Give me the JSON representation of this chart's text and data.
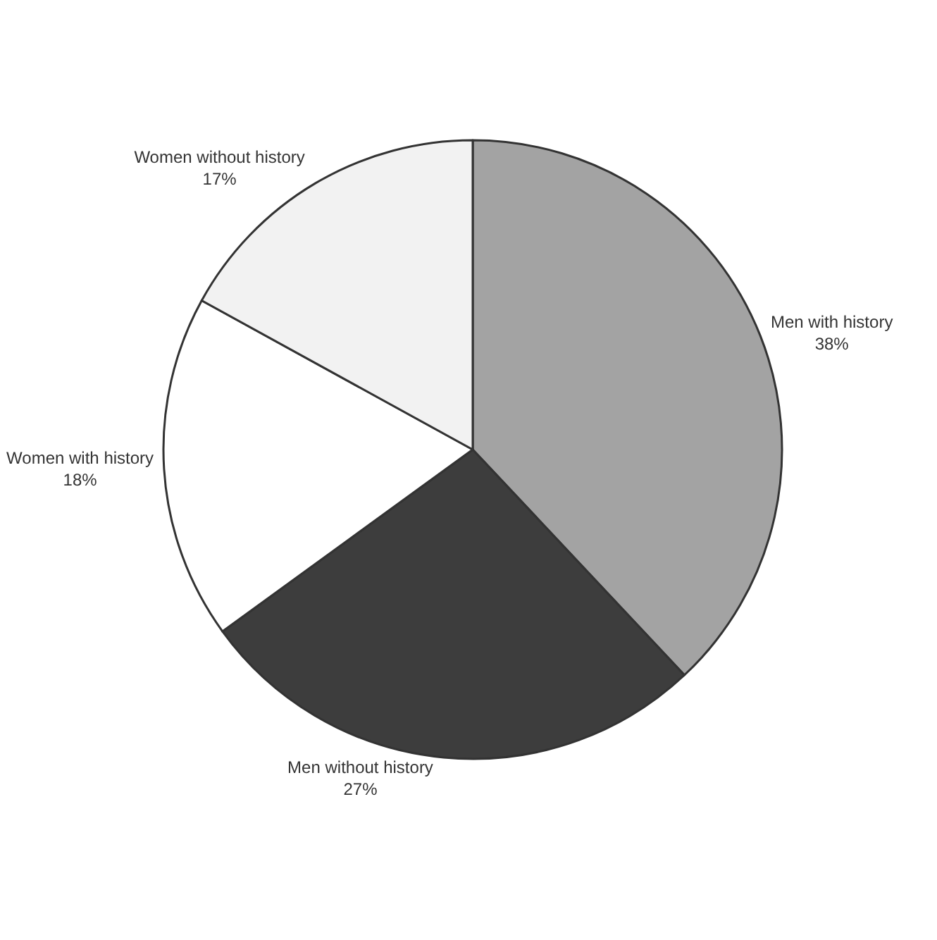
{
  "chart_data": {
    "type": "pie",
    "categories": [
      "Men with history",
      "Men without history",
      "Women with history",
      "Women without history"
    ],
    "values": [
      38,
      27,
      18,
      17
    ],
    "value_labels": [
      "38%",
      "27%",
      "18%",
      "17%"
    ],
    "colors": [
      "#a3a3a3",
      "#3d3d3d",
      "#ffffff",
      "#f2f2f2"
    ]
  }
}
